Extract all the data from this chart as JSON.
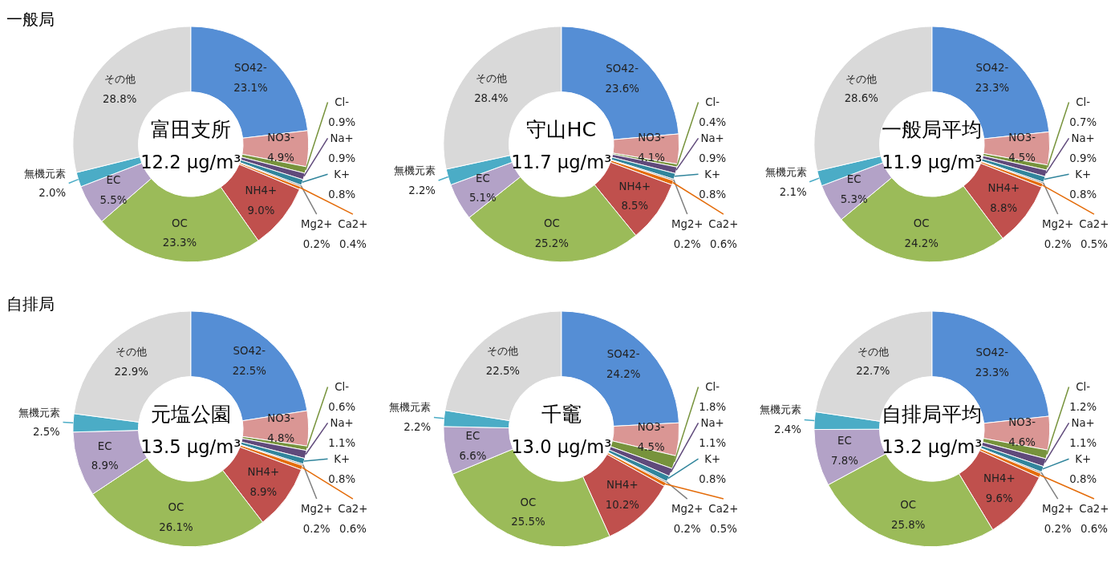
{
  "chart_data": [
    {
      "type": "donut",
      "title": "富田支所",
      "subtitle": "12.2 μg/m³",
      "annotations": [
        "一般局"
      ],
      "legend": false,
      "categories": [
        "SO42-",
        "NO3-",
        "Cl-",
        "Na+",
        "K+",
        "Mg2+",
        "Ca2+",
        "NH4+",
        "OC",
        "EC",
        "無機元素",
        "その他"
      ],
      "colors": [
        "#558ed5",
        "#da9694",
        "#77933c",
        "#604a7b",
        "#31859c",
        "#7f7f7f",
        "#e46c0a",
        "#c0504d",
        "#9bbb59",
        "#b3a2c7",
        "#4bacc6",
        "#d9d9d9"
      ],
      "values": [
        23.1,
        4.9,
        0.9,
        0.9,
        0.8,
        0.2,
        0.4,
        9.0,
        23.3,
        5.5,
        2.0,
        28.8
      ],
      "value_labels": [
        "23.1%",
        "4.9%",
        "0.9%",
        "0.9%",
        "0.8%",
        "0.2%",
        "0.4%",
        "9.0%",
        "23.3%",
        "5.5%",
        "2.0%",
        "28.8%"
      ]
    },
    {
      "type": "donut",
      "title": "守山HC",
      "subtitle": "11.7 μg/m³",
      "legend": false,
      "categories": [
        "SO42-",
        "NO3-",
        "Cl-",
        "Na+",
        "K+",
        "Mg2+",
        "Ca2+",
        "NH4+",
        "OC",
        "EC",
        "無機元素",
        "その他"
      ],
      "colors": [
        "#558ed5",
        "#da9694",
        "#77933c",
        "#604a7b",
        "#31859c",
        "#7f7f7f",
        "#e46c0a",
        "#c0504d",
        "#9bbb59",
        "#b3a2c7",
        "#4bacc6",
        "#d9d9d9"
      ],
      "values": [
        23.6,
        4.1,
        0.4,
        0.9,
        0.8,
        0.2,
        0.6,
        8.5,
        25.2,
        5.1,
        2.2,
        28.4
      ],
      "value_labels": [
        "23.6%",
        "4.1%",
        "0.4%",
        "0.9%",
        "0.8%",
        "0.2%",
        "0.6%",
        "8.5%",
        "25.2%",
        "5.1%",
        "2.2%",
        "28.4%"
      ]
    },
    {
      "type": "donut",
      "title": "一般局平均",
      "subtitle": "11.9 μg/m³",
      "legend": false,
      "categories": [
        "SO42-",
        "NO3-",
        "Cl-",
        "Na+",
        "K+",
        "Mg2+",
        "Ca2+",
        "NH4+",
        "OC",
        "EC",
        "無機元素",
        "その他"
      ],
      "colors": [
        "#558ed5",
        "#da9694",
        "#77933c",
        "#604a7b",
        "#31859c",
        "#7f7f7f",
        "#e46c0a",
        "#c0504d",
        "#9bbb59",
        "#b3a2c7",
        "#4bacc6",
        "#d9d9d9"
      ],
      "values": [
        23.3,
        4.5,
        0.7,
        0.9,
        0.8,
        0.2,
        0.5,
        8.8,
        24.2,
        5.3,
        2.1,
        28.6
      ],
      "value_labels": [
        "23.3%",
        "4.5%",
        "0.7%",
        "0.9%",
        "0.8%",
        "0.2%",
        "0.5%",
        "8.8%",
        "24.2%",
        "5.3%",
        "2.1%",
        "28.6%"
      ]
    },
    {
      "type": "donut",
      "title": "元塩公園",
      "subtitle": "13.5 μg/m³",
      "annotations": [
        "自排局"
      ],
      "legend": false,
      "categories": [
        "SO42-",
        "NO3-",
        "Cl-",
        "Na+",
        "K+",
        "Mg2+",
        "Ca2+",
        "NH4+",
        "OC",
        "EC",
        "無機元素",
        "その他"
      ],
      "colors": [
        "#558ed5",
        "#da9694",
        "#77933c",
        "#604a7b",
        "#31859c",
        "#7f7f7f",
        "#e46c0a",
        "#c0504d",
        "#9bbb59",
        "#b3a2c7",
        "#4bacc6",
        "#d9d9d9"
      ],
      "values": [
        22.5,
        4.8,
        0.6,
        1.1,
        0.8,
        0.2,
        0.6,
        8.9,
        26.1,
        8.9,
        2.5,
        22.9
      ],
      "value_labels": [
        "22.5%",
        "4.8%",
        "0.6%",
        "1.1%",
        "0.8%",
        "0.2%",
        "0.6%",
        "8.9%",
        "26.1%",
        "8.9%",
        "2.5%",
        "22.9%"
      ]
    },
    {
      "type": "donut",
      "title": "千竈",
      "subtitle": "13.0 μg/m³",
      "legend": false,
      "categories": [
        "SO42-",
        "NO3-",
        "Cl-",
        "Na+",
        "K+",
        "Mg2+",
        "Ca2+",
        "NH4+",
        "OC",
        "EC",
        "無機元素",
        "その他"
      ],
      "colors": [
        "#558ed5",
        "#da9694",
        "#77933c",
        "#604a7b",
        "#31859c",
        "#7f7f7f",
        "#e46c0a",
        "#c0504d",
        "#9bbb59",
        "#b3a2c7",
        "#4bacc6",
        "#d9d9d9"
      ],
      "values": [
        24.2,
        4.5,
        1.8,
        1.1,
        0.8,
        0.2,
        0.5,
        10.2,
        25.5,
        6.6,
        2.2,
        22.5
      ],
      "value_labels": [
        "24.2%",
        "4.5%",
        "1.8%",
        "1.1%",
        "0.8%",
        "0.2%",
        "0.5%",
        "10.2%",
        "25.5%",
        "6.6%",
        "2.2%",
        "22.5%"
      ]
    },
    {
      "type": "donut",
      "title": "自排局平均",
      "subtitle": "13.2 μg/m³",
      "legend": false,
      "categories": [
        "SO42-",
        "NO3-",
        "Cl-",
        "Na+",
        "K+",
        "Mg2+",
        "Ca2+",
        "NH4+",
        "OC",
        "EC",
        "無機元素",
        "その他"
      ],
      "colors": [
        "#558ed5",
        "#da9694",
        "#77933c",
        "#604a7b",
        "#31859c",
        "#7f7f7f",
        "#e46c0a",
        "#c0504d",
        "#9bbb59",
        "#b3a2c7",
        "#4bacc6",
        "#d9d9d9"
      ],
      "values": [
        23.3,
        4.6,
        1.2,
        1.1,
        0.8,
        0.2,
        0.6,
        9.6,
        25.8,
        7.8,
        2.4,
        22.7
      ],
      "value_labels": [
        "23.3%",
        "4.6%",
        "1.2%",
        "1.1%",
        "0.8%",
        "0.2%",
        "0.6%",
        "9.6%",
        "25.8%",
        "7.8%",
        "2.4%",
        "22.7%"
      ]
    }
  ]
}
